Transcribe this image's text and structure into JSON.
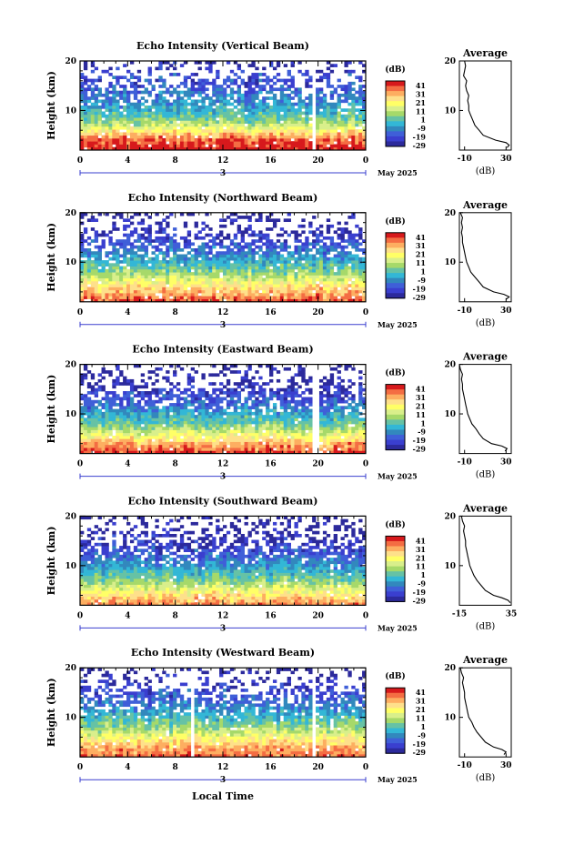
{
  "figure": {
    "xlabel": "Local Time",
    "date_label": "May 2025",
    "colorbar_unit": "(dB)",
    "colorbar_ticks": [
      "41",
      "31",
      "21",
      "11",
      "1",
      "-9",
      "-19",
      "-29"
    ],
    "colorbar_colors": [
      "#d7191c",
      "#f46d43",
      "#fdae61",
      "#fee08b",
      "#ffff66",
      "#d9ef8b",
      "#a6d96a",
      "#66c2a5",
      "#33b7d6",
      "#3288bd",
      "#3f5fd8",
      "#3a3fcf",
      "#2c2a9c"
    ],
    "heatmap_colors": {
      "high": "#f46d2a",
      "midhigh": "#fdd835",
      "mid": "#c8e86a",
      "midlow": "#7fd4c8",
      "low": "#3fa8e8",
      "lower": "#3b6fe0",
      "lowest": "#3a3fd8"
    }
  },
  "chart_data": [
    {
      "type": "heatmap",
      "title": "Echo Intensity (Vertical Beam)",
      "ylabel": "Height (km)",
      "xlabel": "Local Time",
      "x_ticks": [
        "0",
        "4",
        "8",
        "12",
        "16",
        "20",
        "0"
      ],
      "x_day_marker": "3",
      "y_ticks": [
        "20",
        "10"
      ],
      "xlim": [
        0,
        24
      ],
      "ylim": [
        2,
        20
      ],
      "z_unit": "dB",
      "zlim": [
        -29,
        41
      ],
      "gaps_hours": [
        19.7
      ],
      "profile": {
        "h": [
          2,
          3,
          4,
          5,
          6,
          7,
          8,
          9,
          10,
          11,
          12,
          13,
          14,
          15,
          16,
          17,
          18,
          19,
          20
        ],
        "z": [
          41,
          38,
          34,
          28,
          18,
          10,
          4,
          0,
          -4,
          -7,
          -10,
          -12,
          -14,
          -18,
          -20,
          -16,
          -22,
          -24,
          -26
        ]
      },
      "average": {
        "title": "Average",
        "xlabel": "(dB)",
        "x_ticks": [
          "-10",
          "30"
        ],
        "xlim": [
          -15,
          35
        ],
        "y_ticks": [
          "20",
          "10"
        ],
        "h": [
          2.5,
          3,
          3.5,
          4,
          5,
          6,
          7,
          8,
          9,
          10,
          11,
          12,
          13,
          14,
          15,
          16,
          17,
          18,
          19,
          20
        ],
        "db": [
          31,
          33,
          30,
          20,
          8,
          4,
          0,
          -2,
          -4,
          -6,
          -6,
          -7,
          -6,
          -8,
          -9,
          -8,
          -11,
          -10,
          -9,
          -10
        ]
      }
    },
    {
      "type": "heatmap",
      "title": "Echo Intensity (Northward Beam)",
      "ylabel": "Height (km)",
      "xlabel": "Local Time",
      "x_ticks": [
        "0",
        "4",
        "8",
        "12",
        "16",
        "20",
        "0"
      ],
      "x_day_marker": "3",
      "y_ticks": [
        "20",
        "10"
      ],
      "xlim": [
        0,
        24
      ],
      "ylim": [
        2,
        20
      ],
      "z_unit": "dB",
      "zlim": [
        -29,
        41
      ],
      "gaps_hours": [],
      "profile": {
        "h": [
          2,
          3,
          4,
          5,
          6,
          7,
          8,
          9,
          10,
          11,
          12,
          13,
          14,
          15,
          16,
          17,
          18,
          19,
          20
        ],
        "z": [
          36,
          30,
          26,
          22,
          16,
          10,
          4,
          0,
          -4,
          -8,
          -12,
          -15,
          -18,
          -22,
          -24,
          -25,
          -26,
          -27,
          -28
        ]
      },
      "average": {
        "title": "Average",
        "xlabel": "(dB)",
        "x_ticks": [
          "-10",
          "30"
        ],
        "xlim": [
          -15,
          35
        ],
        "y_ticks": [
          "20",
          "10"
        ],
        "h": [
          2.5,
          3,
          3.5,
          4,
          5,
          6,
          7,
          8,
          9,
          10,
          11,
          12,
          13,
          14,
          15,
          16,
          17,
          18,
          19,
          20
        ],
        "db": [
          30,
          33,
          28,
          18,
          8,
          4,
          0,
          -4,
          -6,
          -8,
          -9,
          -10,
          -11,
          -12,
          -12,
          -13,
          -12,
          -13,
          -12,
          -14
        ]
      }
    },
    {
      "type": "heatmap",
      "title": "Echo Intensity (Eastward Beam)",
      "ylabel": "Height (km)",
      "xlabel": "Local Time",
      "x_ticks": [
        "0",
        "4",
        "8",
        "12",
        "16",
        "20",
        "0"
      ],
      "x_day_marker": "3",
      "y_ticks": [
        "20",
        "10"
      ],
      "xlim": [
        0,
        24
      ],
      "ylim": [
        2,
        20
      ],
      "z_unit": "dB",
      "zlim": [
        -29,
        41
      ],
      "gaps_hours": [
        19.8
      ],
      "profile": {
        "h": [
          2,
          3,
          4,
          5,
          6,
          7,
          8,
          9,
          10,
          11,
          12,
          13,
          14,
          15,
          16,
          17,
          18,
          19,
          20
        ],
        "z": [
          38,
          32,
          28,
          20,
          14,
          8,
          2,
          -2,
          -6,
          -10,
          -14,
          -18,
          -20,
          -22,
          -24,
          -25,
          -26,
          -28,
          -29
        ]
      },
      "average": {
        "title": "Average",
        "xlabel": "(dB)",
        "x_ticks": [
          "-10",
          "30"
        ],
        "xlim": [
          -15,
          35
        ],
        "y_ticks": [
          "20",
          "10"
        ],
        "h": [
          2.5,
          3,
          3.5,
          4,
          5,
          6,
          7,
          8,
          9,
          10,
          11,
          12,
          13,
          14,
          15,
          16,
          17,
          18,
          19,
          20
        ],
        "db": [
          29,
          31,
          26,
          16,
          8,
          4,
          1,
          -3,
          -5,
          -7,
          -8,
          -9,
          -10,
          -11,
          -12,
          -12,
          -13,
          -12,
          -14,
          -15
        ]
      }
    },
    {
      "type": "heatmap",
      "title": "Echo Intensity (Southward Beam)",
      "ylabel": "Height (km)",
      "xlabel": "Local Time",
      "x_ticks": [
        "0",
        "4",
        "8",
        "12",
        "16",
        "20",
        "0"
      ],
      "x_day_marker": "3",
      "y_ticks": [
        "20",
        "10"
      ],
      "xlim": [
        0,
        24
      ],
      "ylim": [
        2,
        20
      ],
      "z_unit": "dB",
      "zlim": [
        -29,
        41
      ],
      "gaps_hours": [],
      "profile": {
        "h": [
          2,
          3,
          4,
          5,
          6,
          7,
          8,
          9,
          10,
          11,
          12,
          13,
          14,
          15,
          16,
          17,
          18,
          19,
          20
        ],
        "z": [
          32,
          26,
          22,
          16,
          10,
          4,
          0,
          -4,
          -8,
          -12,
          -15,
          -18,
          -21,
          -23,
          -25,
          -26,
          -27,
          -28,
          -29
        ]
      },
      "average": {
        "title": "Average",
        "xlabel": "(dB)",
        "x_ticks": [
          "-15",
          "35"
        ],
        "xlim": [
          -15,
          35
        ],
        "y_ticks": [
          "20",
          "10"
        ],
        "h": [
          2.5,
          3,
          3.5,
          4,
          5,
          6,
          7,
          8,
          9,
          10,
          11,
          12,
          13,
          14,
          15,
          16,
          17,
          18,
          19,
          20
        ],
        "db": [
          34,
          32,
          26,
          18,
          10,
          6,
          2,
          -1,
          -3,
          -5,
          -6,
          -7,
          -8,
          -9,
          -9,
          -10,
          -11,
          -10,
          -12,
          -13
        ]
      }
    },
    {
      "type": "heatmap",
      "title": "Echo Intensity (Westward Beam)",
      "ylabel": "Height (km)",
      "xlabel": "Local Time",
      "x_ticks": [
        "0",
        "4",
        "8",
        "12",
        "16",
        "20",
        "0"
      ],
      "x_day_marker": "3",
      "y_ticks": [
        "20",
        "10"
      ],
      "xlim": [
        0,
        24
      ],
      "ylim": [
        2,
        20
      ],
      "z_unit": "dB",
      "zlim": [
        -29,
        41
      ],
      "gaps_hours": [
        9.5,
        19.7
      ],
      "profile": {
        "h": [
          2,
          3,
          4,
          5,
          6,
          7,
          8,
          9,
          10,
          11,
          12,
          13,
          14,
          15,
          16,
          17,
          18,
          19,
          20
        ],
        "z": [
          34,
          30,
          28,
          22,
          16,
          10,
          6,
          2,
          -2,
          -6,
          -10,
          -13,
          -16,
          -18,
          -20,
          -22,
          -24,
          -26,
          -28
        ]
      },
      "average": {
        "title": "Average",
        "xlabel": "(dB)",
        "x_ticks": [
          "-10",
          "30"
        ],
        "xlim": [
          -15,
          35
        ],
        "y_ticks": [
          "20",
          "10"
        ],
        "h": [
          2.5,
          3,
          3.5,
          4,
          5,
          6,
          7,
          8,
          9,
          10,
          11,
          12,
          13,
          14,
          15,
          16,
          17,
          18,
          19,
          20
        ],
        "db": [
          28,
          30,
          26,
          18,
          10,
          6,
          2,
          -1,
          -3,
          -6,
          -7,
          -8,
          -9,
          -10,
          -10,
          -11,
          -12,
          -11,
          -13,
          -14
        ]
      }
    }
  ]
}
